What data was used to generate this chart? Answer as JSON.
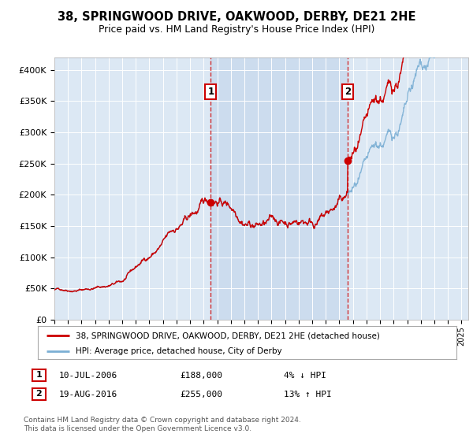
{
  "title": "38, SPRINGWOOD DRIVE, OAKWOOD, DERBY, DE21 2HE",
  "subtitle": "Price paid vs. HM Land Registry's House Price Index (HPI)",
  "legend_line1": "38, SPRINGWOOD DRIVE, OAKWOOD, DERBY, DE21 2HE (detached house)",
  "legend_line2": "HPI: Average price, detached house, City of Derby",
  "annotation1_date": "10-JUL-2006",
  "annotation1_price": "£188,000",
  "annotation1_hpi": "4% ↓ HPI",
  "annotation2_date": "19-AUG-2016",
  "annotation2_price": "£255,000",
  "annotation2_hpi": "13% ↑ HPI",
  "footnote": "Contains HM Land Registry data © Crown copyright and database right 2024.\nThis data is licensed under the Open Government Licence v3.0.",
  "sale1_year": 2006.53,
  "sale1_value": 188000,
  "sale2_year": 2016.63,
  "sale2_value": 255000,
  "hpi_color": "#7bafd4",
  "price_color": "#cc0000",
  "vline_color": "#cc0000",
  "plot_bg": "#dce8f4",
  "ylim": [
    0,
    420000
  ],
  "xlim_start": 1995,
  "xlim_end": 2025.5,
  "between_vline_bg": "#ccdcee"
}
